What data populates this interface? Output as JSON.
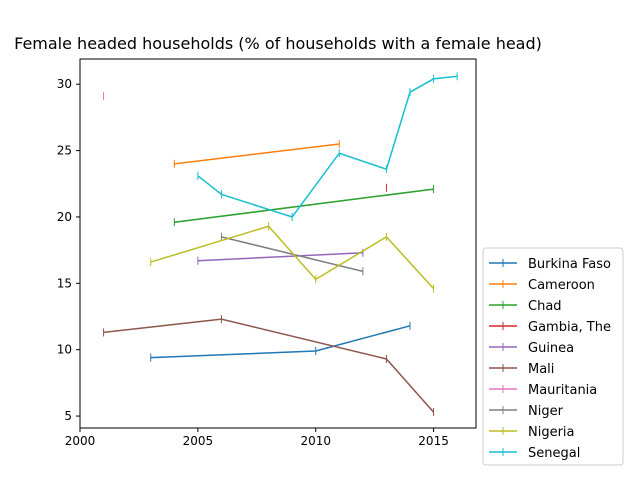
{
  "chart_data": {
    "type": "line",
    "title": "Female headed households (% of households with a female head)",
    "xlabel": "",
    "ylabel": "",
    "xlim": [
      2000,
      2016.8
    ],
    "ylim": [
      4.1,
      31.9
    ],
    "xticks": [
      2000,
      2005,
      2010,
      2015
    ],
    "yticks": [
      5,
      10,
      15,
      20,
      25,
      30
    ],
    "grid": false,
    "legend_position": "lower-right-outside",
    "series": [
      {
        "name": "Burkina Faso",
        "color": "#1f77b4",
        "points": [
          [
            2003,
            9.4
          ],
          [
            2010,
            9.9
          ],
          [
            2014,
            11.8
          ]
        ]
      },
      {
        "name": "Cameroon",
        "color": "#ff7f0e",
        "points": [
          [
            2004,
            24.0
          ],
          [
            2011,
            25.5
          ]
        ]
      },
      {
        "name": "Chad",
        "color": "#2ca02c",
        "points": [
          [
            2004,
            19.6
          ],
          [
            2015,
            22.1
          ]
        ]
      },
      {
        "name": "Gambia, The",
        "color": "#d62728",
        "points": [
          [
            2013,
            22.2
          ]
        ]
      },
      {
        "name": "Guinea",
        "color": "#9467bd",
        "points": [
          [
            2005,
            16.7
          ],
          [
            2012,
            17.3
          ]
        ]
      },
      {
        "name": "Mali",
        "color": "#8c564b",
        "points": [
          [
            2001,
            11.3
          ],
          [
            2006,
            12.3
          ],
          [
            2013,
            9.3
          ],
          [
            2015,
            5.3
          ]
        ]
      },
      {
        "name": "Mauritania",
        "color": "#e377c2",
        "points": [
          [
            2001,
            29.1
          ]
        ]
      },
      {
        "name": "Niger",
        "color": "#7f7f7f",
        "points": [
          [
            2006,
            18.5
          ],
          [
            2012,
            15.9
          ]
        ]
      },
      {
        "name": "Nigeria",
        "color": "#bcbd22",
        "points": [
          [
            2003,
            16.6
          ],
          [
            2008,
            19.3
          ],
          [
            2010,
            15.3
          ],
          [
            2013,
            18.5
          ],
          [
            2015,
            14.6
          ]
        ]
      },
      {
        "name": "Senegal",
        "color": "#17becf",
        "points": [
          [
            2005,
            23.1
          ],
          [
            2006,
            21.7
          ],
          [
            2009,
            20.0
          ],
          [
            2011,
            24.8
          ],
          [
            2013,
            23.6
          ],
          [
            2014,
            29.4
          ],
          [
            2015,
            30.4
          ],
          [
            2016,
            30.6
          ]
        ]
      }
    ]
  }
}
